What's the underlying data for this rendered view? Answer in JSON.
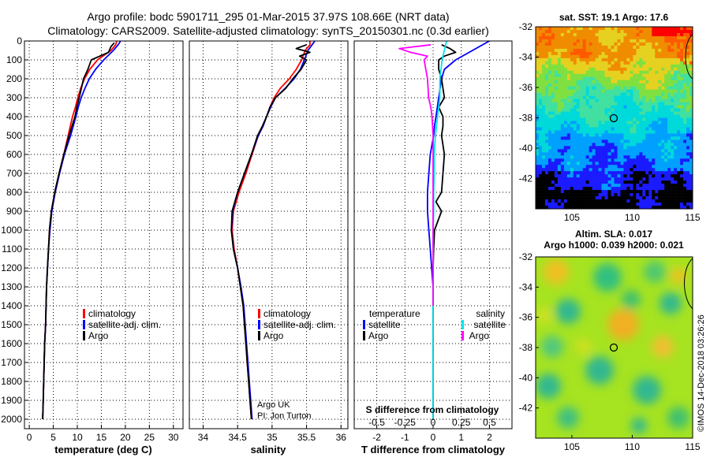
{
  "header": {
    "line1": "Argo profile: bodc 5901711_295 01-Mar-2015 37.97S 108.66E (NRT data)",
    "line2": "Climatology: CARS2009. Satellite-adjusted climatology: synTS_20150301.nc (0.3d earlier)"
  },
  "colors": {
    "climatology": "#ff0000",
    "satellite": "#0000ff",
    "argo": "#000000",
    "salinity_satellite": "#00e5ee",
    "salinity_argo": "#ff00ff"
  },
  "credit": {
    "line1": "Argo UK",
    "line2": "PI: Jon Turton"
  },
  "stamp": "©IMOS 14-Dec-2018 03:26:26",
  "legends": {
    "profile": {
      "climatology": "climatology",
      "satellite": "satellite-adj. clim.",
      "argo": "Argo"
    },
    "difference": {
      "temperature_heading": "temperature",
      "salinity_heading": "salinity",
      "satellite": "satellite",
      "argo": "Argo"
    }
  },
  "chart_data": [
    {
      "id": "temperature",
      "type": "line",
      "xlabel": "temperature (deg C)",
      "ylabel": "",
      "xlim": [
        -1,
        32
      ],
      "ylim": [
        2050,
        0
      ],
      "xticks": [
        0,
        5,
        10,
        15,
        20,
        25,
        30
      ],
      "xticklabels": [
        "0",
        "5",
        "10",
        "15",
        "20",
        "25",
        "30"
      ],
      "yticks": [
        0,
        100,
        200,
        300,
        400,
        500,
        600,
        700,
        800,
        900,
        1000,
        1100,
        1200,
        1300,
        1400,
        1500,
        1600,
        1700,
        1800,
        1900,
        2000
      ],
      "grid": true,
      "legend_position": "center",
      "series": [
        {
          "key": "climatology",
          "x": [
            18.2,
            18.0,
            17.0,
            14.2,
            12.6,
            11.5,
            10.7,
            10.1,
            9.6,
            9.0,
            8.1,
            7.2,
            6.2,
            5.3,
            4.6,
            4.2,
            4.0,
            3.8,
            3.6,
            3.5,
            3.4,
            3.2,
            3.1,
            3.0,
            2.9,
            2.8
          ],
          "y": [
            0,
            20,
            50,
            100,
            150,
            200,
            250,
            300,
            350,
            400,
            500,
            600,
            700,
            800,
            900,
            1000,
            1100,
            1200,
            1300,
            1400,
            1500,
            1600,
            1700,
            1800,
            1900,
            2000
          ]
        },
        {
          "key": "satellite",
          "x": [
            19.0,
            18.5,
            17.5,
            15.5,
            13.8,
            12.5,
            11.6,
            10.8,
            10.2,
            9.7,
            8.6,
            7.3,
            6.3,
            5.4,
            4.7,
            4.3,
            4.0,
            3.8,
            3.6,
            3.5,
            3.4,
            3.2,
            3.1,
            3.0,
            2.9,
            2.8
          ],
          "y": [
            0,
            20,
            50,
            100,
            150,
            200,
            250,
            300,
            350,
            400,
            500,
            600,
            700,
            800,
            900,
            1000,
            1100,
            1200,
            1300,
            1400,
            1500,
            1600,
            1700,
            1800,
            1900,
            2000
          ]
        },
        {
          "key": "argo",
          "x": [
            17.7,
            17.0,
            16.5,
            14.7,
            12.9,
            12.2,
            11.3,
            10.4,
            9.9,
            9.5,
            8.3,
            7.2,
            6.2,
            5.3,
            4.6,
            4.2,
            4.0,
            3.8,
            3.6,
            3.5,
            3.4,
            3.2,
            3.1,
            3.0,
            2.9,
            2.8
          ],
          "y": [
            10,
            30,
            60,
            80,
            100,
            150,
            200,
            300,
            350,
            400,
            500,
            600,
            700,
            800,
            900,
            1000,
            1100,
            1200,
            1300,
            1400,
            1500,
            1600,
            1700,
            1800,
            1900,
            2000
          ]
        }
      ]
    },
    {
      "id": "salinity",
      "type": "line",
      "xlabel": "salinity",
      "ylabel": "",
      "xlim": [
        33.8,
        36.1
      ],
      "ylim": [
        2050,
        0
      ],
      "xticks": [
        34,
        34.5,
        35,
        35.5,
        36
      ],
      "xticklabels": [
        "34",
        "34.5",
        "35",
        "35.5",
        "36"
      ],
      "yticks": [
        0,
        100,
        200,
        300,
        400,
        500,
        600,
        700,
        800,
        900,
        1000,
        1100,
        1200,
        1300,
        1400,
        1500,
        1600,
        1700,
        1800,
        1900,
        2000
      ],
      "grid": true,
      "legend_position": "center",
      "series": [
        {
          "key": "climatology",
          "x": [
            35.55,
            35.55,
            35.48,
            35.43,
            35.35,
            35.25,
            35.12,
            35.03,
            34.97,
            34.92,
            34.87,
            34.8,
            34.71,
            34.62,
            34.52,
            34.44,
            34.42,
            34.45,
            34.5,
            34.54,
            34.58,
            34.6,
            34.62,
            34.64,
            34.66,
            34.68,
            34.7
          ],
          "y": [
            0,
            20,
            50,
            100,
            150,
            200,
            250,
            300,
            350,
            400,
            450,
            500,
            600,
            700,
            800,
            900,
            1000,
            1100,
            1200,
            1300,
            1400,
            1500,
            1600,
            1700,
            1800,
            1900,
            2000
          ]
        },
        {
          "key": "satellite",
          "x": [
            35.62,
            35.58,
            35.52,
            35.47,
            35.41,
            35.32,
            35.19,
            35.05,
            34.98,
            34.92,
            34.87,
            34.8,
            34.7,
            34.6,
            34.5,
            34.43,
            34.41,
            34.44,
            34.5,
            34.55,
            34.59,
            34.61,
            34.63,
            34.65,
            34.67,
            34.69,
            34.71
          ],
          "y": [
            0,
            20,
            50,
            100,
            150,
            200,
            250,
            300,
            350,
            400,
            450,
            500,
            600,
            700,
            800,
            900,
            1000,
            1100,
            1200,
            1300,
            1400,
            1500,
            1600,
            1700,
            1800,
            1900,
            2000
          ]
        },
        {
          "key": "argo",
          "x": [
            35.5,
            35.35,
            35.55,
            35.4,
            35.5,
            35.42,
            35.3,
            35.2,
            35.05,
            34.97,
            34.92,
            34.86,
            34.79,
            34.7,
            34.6,
            34.5,
            34.42,
            34.41,
            34.44,
            34.5,
            34.54,
            34.58,
            34.6,
            34.62,
            34.64,
            34.66,
            34.68,
            34.7
          ],
          "y": [
            20,
            40,
            60,
            80,
            100,
            150,
            200,
            250,
            300,
            350,
            400,
            450,
            500,
            600,
            700,
            800,
            900,
            1000,
            1100,
            1200,
            1300,
            1400,
            1500,
            1600,
            1700,
            1800,
            1900,
            2000
          ]
        }
      ]
    },
    {
      "id": "difference",
      "type": "line",
      "xlabel": "T difference from climatology",
      "title_bottom": "S difference from climatology",
      "ylabel": "",
      "xlim": [
        -2.8,
        2.8
      ],
      "ylim": [
        2050,
        0
      ],
      "xticks": [
        -2,
        -1,
        0,
        1,
        2
      ],
      "xticklabels": [
        "-2",
        "-1",
        "0",
        "1",
        "2"
      ],
      "xticks_secondary": [
        -0.5,
        -0.25,
        0,
        0.25,
        0.5
      ],
      "xticklabels_secondary": [
        "-0.5",
        "-0.25",
        "0",
        "0.25",
        "0.5"
      ],
      "yticks": [
        0,
        100,
        200,
        300,
        400,
        500,
        600,
        700,
        800,
        900,
        1000,
        1100,
        1200,
        1300,
        1400,
        1500,
        1600,
        1700,
        1800,
        1900,
        2000
      ],
      "grid": true,
      "legend_position": "center",
      "series": [
        {
          "key": "temp_satellite",
          "x": [
            2.0,
            1.4,
            0.8,
            0.4,
            0.3,
            0.2,
            0.1,
            0.05,
            0.02,
            -0.1,
            -0.15,
            -0.2,
            -0.2,
            -0.15,
            -0.1,
            -0.05,
            0.0,
            0.0,
            0.0,
            0.0,
            0.0,
            0.0,
            0.0,
            0.0
          ],
          "y": [
            0,
            50,
            100,
            150,
            200,
            300,
            400,
            450,
            500,
            600,
            700,
            800,
            900,
            1000,
            1100,
            1200,
            1300,
            1400,
            1500,
            1600,
            1700,
            1800,
            1900,
            2000
          ]
        },
        {
          "key": "temp_argo",
          "x": [
            0.3,
            0.6,
            0.8,
            0.4,
            0.2,
            0.2,
            0.3,
            0.4,
            0.2,
            0.35,
            0.35,
            0.3,
            0.4,
            0.35,
            0.3,
            0.1,
            0.3,
            0.05,
            0.02,
            0.0,
            0.0,
            0.0,
            0.0,
            0.0,
            0.0,
            0.0,
            0.0,
            0.0
          ],
          "y": [
            20,
            40,
            60,
            80,
            100,
            150,
            200,
            300,
            350,
            400,
            450,
            500,
            600,
            700,
            800,
            850,
            900,
            1000,
            1100,
            1200,
            1300,
            1400,
            1500,
            1600,
            1700,
            1800,
            1900,
            2000
          ]
        },
        {
          "key": "sal_satellite",
          "x": [
            0.12,
            0.08,
            0.06,
            0.06,
            0.05,
            0.04,
            0.02,
            0.01,
            0.01,
            0.005,
            0.005,
            0.0,
            0.0,
            0.0,
            0.0,
            0.0,
            0.0,
            0.0,
            0.0,
            0.0,
            0.0
          ],
          "y": [
            0,
            100,
            200,
            300,
            350,
            400,
            500,
            600,
            700,
            800,
            900,
            1000,
            1100,
            1200,
            1300,
            1400,
            1500,
            1600,
            1700,
            1800,
            2000
          ]
        },
        {
          "key": "sal_argo",
          "x": [
            -0.02,
            -0.3,
            -0.2,
            -0.05,
            -0.08,
            -0.05,
            -0.04,
            -0.02,
            -0.01,
            0.0,
            0.0,
            0.0,
            0.0,
            0.0,
            0.0
          ],
          "y": [
            20,
            40,
            60,
            80,
            100,
            200,
            300,
            350,
            400,
            500,
            600,
            800,
            1000,
            1200,
            1400
          ]
        }
      ]
    }
  ],
  "maps": {
    "sst": {
      "title": "sat. SST: 19.1 Argo: 17.6",
      "xticks": [
        105,
        110,
        115
      ],
      "yticks": [
        -32,
        -34,
        -36,
        -38,
        -40,
        -42
      ],
      "xlim": [
        102,
        115
      ],
      "ylim": [
        -44,
        -32
      ],
      "argo_lon": 108.66,
      "argo_lat": -37.97
    },
    "sla": {
      "title1": "Altim. SLA: 0.017",
      "title2": "Argo h1000: 0.039 h2000: 0.021",
      "xticks": [
        105,
        110,
        115
      ],
      "yticks": [
        -32,
        -34,
        -36,
        -38,
        -40,
        -42
      ],
      "xlim": [
        102,
        115
      ],
      "ylim": [
        -44,
        -32
      ],
      "argo_lon": 108.66,
      "argo_lat": -37.97
    }
  }
}
